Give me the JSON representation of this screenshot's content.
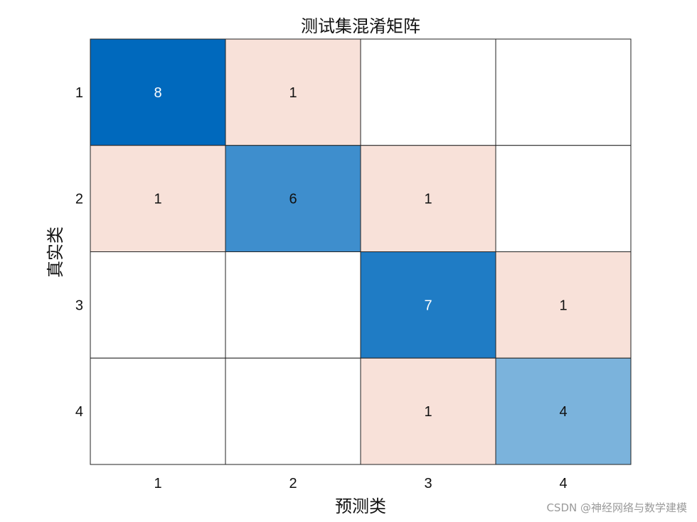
{
  "chart_data": {
    "type": "heatmap",
    "title": "测试集混淆矩阵",
    "xlabel": "预测类",
    "ylabel": "真实类",
    "x_categories": [
      "1",
      "2",
      "3",
      "4"
    ],
    "y_categories": [
      "1",
      "2",
      "3",
      "4"
    ],
    "matrix": [
      [
        8,
        1,
        null,
        null
      ],
      [
        1,
        6,
        1,
        null
      ],
      [
        null,
        null,
        7,
        1
      ],
      [
        null,
        null,
        1,
        4
      ]
    ],
    "colors": {
      "diagonal_max": "#0069bd",
      "diagonal_min": "#7bb3dc",
      "off_diagonal": "#f8e1d9",
      "empty": "#ffffff",
      "grid": "#222222",
      "dark_text": "#ffffff",
      "light_text": "#111111"
    }
  },
  "watermark": "CSDN @神经网络与数学建模"
}
